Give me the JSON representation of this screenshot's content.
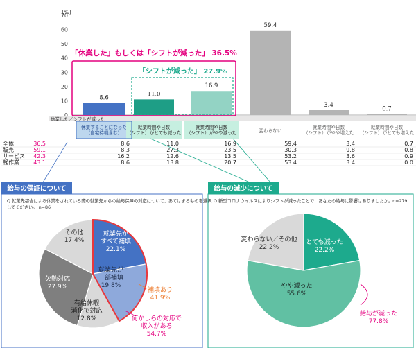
{
  "colors": {
    "navy": "#4472C4",
    "green1": "#1E9E86",
    "green2": "#93D3C4",
    "green3": "#CDEFE6",
    "gray_bar": "#B4B4B4",
    "pink": "#E4007F",
    "teal": "#1DAA8D",
    "orange": "#ED7D31",
    "pie_navy": "#4472C4",
    "pie_light": "#8EA9DB",
    "pie_dark": "#7F7F7F",
    "pie_gray": "#D9D9D9",
    "pie_green": "#61C0A3",
    "header_bg": "#BDD7EE",
    "header_bg2": "#C6EFE0"
  },
  "chart_data": [
    {
      "type": "bar",
      "y_unit": "(%)",
      "ylim": [
        0,
        70
      ],
      "y_ticks": [
        "0",
        "10",
        "20",
        "30",
        "40",
        "50",
        "60",
        "70"
      ],
      "values": [
        8.6,
        11.0,
        16.9,
        59.4,
        3.4,
        0.7
      ],
      "value_labels": [
        "8.6",
        "11.0",
        "16.9",
        "59.4",
        "3.4",
        "0.7"
      ],
      "annotation_outer": "「休業した」もしくは「シフトが減った」 36.5%",
      "annotation_inner": "「シフトが減った」 27.9%",
      "table": {
        "header_title": "休業した／シフトが減った",
        "columns": [
          "休業することになった\n（自宅待機含む）",
          "就業時間や日数\n（シフト）がとても減った",
          "就業時間や日数\n（シフト）がやや減った",
          "変わらない",
          "就業時間や日数\n（シフト）がやや増えた",
          "就業時間や日数\n（シフト）がとても増えた"
        ],
        "rows": [
          {
            "label": "全体",
            "total": "36.5",
            "values": [
              "8.6",
              "11.0",
              "16.9",
              "59.4",
              "3.4",
              "0.7"
            ]
          },
          {
            "label": "販売",
            "total": "59.1",
            "values": [
              "8.3",
              "27.3",
              "23.5",
              "30.3",
              "9.8",
              "0.8"
            ]
          },
          {
            "label": "サービス",
            "total": "42.3",
            "values": [
              "16.2",
              "12.6",
              "13.5",
              "53.2",
              "3.6",
              "0.9"
            ]
          },
          {
            "label": "軽作業",
            "total": "43.1",
            "values": [
              "8.6",
              "13.8",
              "20.7",
              "53.4",
              "3.4",
              "0.0"
            ]
          }
        ]
      }
    },
    {
      "type": "pie",
      "panel_title": "給与の保証について",
      "question": "Q.就業先都合による休業をされている際の就業先からの給与保障の対応について、あてはまるものを選択してください。 n=86",
      "slices": [
        {
          "label": "就業先が\nすべて補填",
          "value": 22.1,
          "value_label": "22.1%"
        },
        {
          "label": "就業先が\n一部補填",
          "value": 19.8,
          "value_label": "19.8%"
        },
        {
          "label": "有給休暇\n消化で対応",
          "value": 12.8,
          "value_label": "12.8%"
        },
        {
          "label": "欠勤対応",
          "value": 27.9,
          "value_label": "27.9%"
        },
        {
          "label": "その他",
          "value": 17.4,
          "value_label": "17.4%"
        }
      ],
      "callouts": [
        {
          "label": "補填あり",
          "value_label": "41.9%"
        },
        {
          "label": "何かしらの対応で\n収入がある",
          "value_label": "54.7%"
        }
      ]
    },
    {
      "type": "pie",
      "panel_title": "給与の減少について",
      "question": "Q.新型コロナウイルスによりシフトが減ったことで、あなたの給与に影響はありましたか。n=279",
      "slices": [
        {
          "label": "とても減った",
          "value": 22.2,
          "value_label": "22.2%"
        },
        {
          "label": "やや減った",
          "value": 55.6,
          "value_label": "55.6%"
        },
        {
          "label": "変わらない／その他",
          "value": 22.2,
          "value_label": "22.2%"
        }
      ],
      "callouts": [
        {
          "label": "給与が減った",
          "value_label": "77.8%"
        }
      ]
    }
  ]
}
